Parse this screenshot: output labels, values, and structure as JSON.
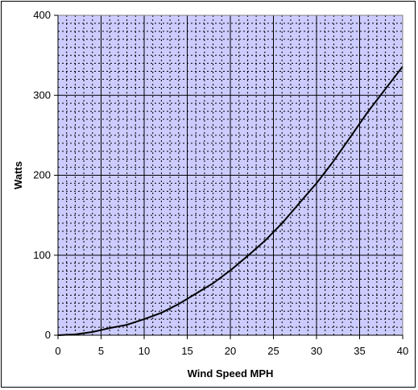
{
  "chart_data": {
    "type": "line",
    "title": "",
    "xlabel": "Wind Speed MPH",
    "ylabel": "Watts",
    "xlim": [
      0,
      40
    ],
    "ylim": [
      0,
      400
    ],
    "x_ticks": [
      0,
      5,
      10,
      15,
      20,
      25,
      30,
      35,
      40
    ],
    "y_ticks": [
      0,
      100,
      200,
      300,
      400
    ],
    "grid": true,
    "minor_grid": true,
    "legend": "none",
    "plot_background": "#ccccff",
    "line_color": "#000000",
    "series": [
      {
        "x": [
          0,
          2,
          4,
          6,
          8,
          10,
          12,
          14,
          16,
          18,
          20,
          22,
          24,
          26,
          28,
          30,
          32,
          34,
          36,
          38,
          40
        ],
        "values": [
          0,
          1,
          4,
          9,
          13,
          20,
          28,
          39,
          52,
          65,
          81,
          99,
          118,
          140,
          165,
          190,
          218,
          249,
          280,
          308,
          336
        ]
      }
    ]
  }
}
